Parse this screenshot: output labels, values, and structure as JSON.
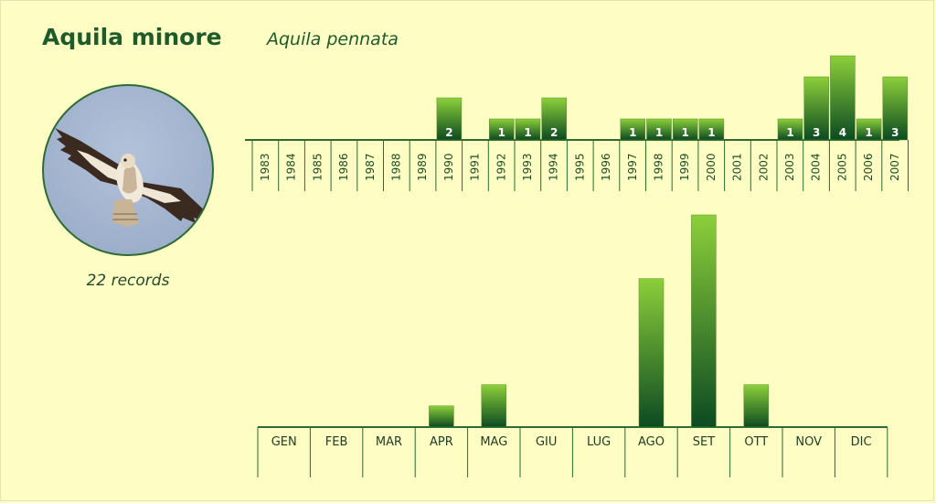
{
  "header": {
    "common_name": "Aquila minore",
    "scientific_name": "Aquila pennata"
  },
  "photo": {
    "icon": "booted-eagle-photo"
  },
  "summary": {
    "records_label": "22 records"
  },
  "colors": {
    "background": "#fdfdc4",
    "bar_top": "#8ccf3a",
    "bar_bottom": "#0c4a22",
    "axis": "#2d6b35",
    "title": "#1f5a2a"
  },
  "chart_data": [
    {
      "type": "bar",
      "categories": [
        "1983",
        "1984",
        "1985",
        "1986",
        "1987",
        "1988",
        "1989",
        "1990",
        "1991",
        "1992",
        "1993",
        "1994",
        "1995",
        "1996",
        "1997",
        "1998",
        "1999",
        "2000",
        "2001",
        "2002",
        "2003",
        "2004",
        "2005",
        "2006",
        "2007"
      ],
      "values": [
        0,
        0,
        0,
        0,
        0,
        0,
        0,
        2,
        0,
        1,
        1,
        2,
        0,
        0,
        1,
        1,
        1,
        1,
        0,
        0,
        1,
        3,
        4,
        1,
        3
      ],
      "xlabel": "",
      "ylabel": "",
      "ylim": [
        0,
        4
      ],
      "data_labels": true,
      "grid": false
    },
    {
      "type": "bar",
      "categories": [
        "GEN",
        "FEB",
        "MAR",
        "APR",
        "MAG",
        "GIU",
        "LUG",
        "AGO",
        "SET",
        "OTT",
        "NOV",
        "DIC"
      ],
      "values": [
        0,
        0,
        0,
        1,
        2,
        0,
        0,
        7,
        10,
        2,
        0,
        0
      ],
      "xlabel": "",
      "ylabel": "",
      "ylim": [
        0,
        10
      ],
      "data_labels": false,
      "grid": false
    }
  ]
}
